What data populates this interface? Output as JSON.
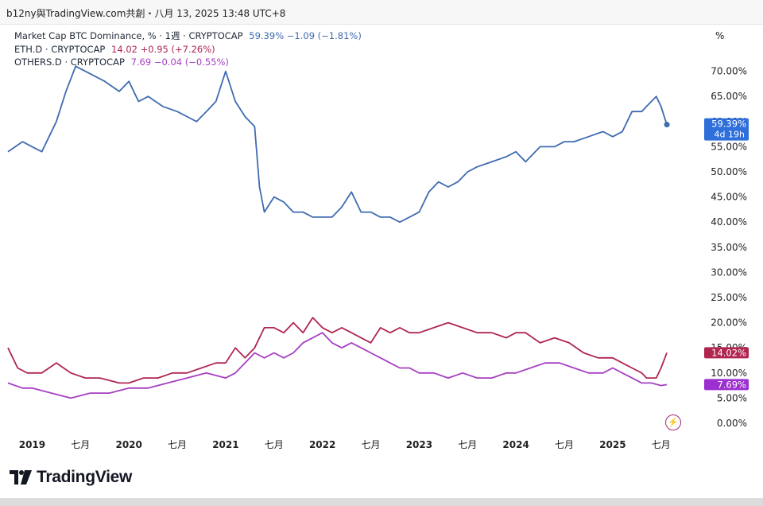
{
  "header": {
    "caption": "b12ny與TradingView.com共創・八月 13, 2025 13:48 UTC+8"
  },
  "legend": {
    "rows": [
      {
        "name": "Market Cap BTC Dominance, % · 1週 · CRYPTOCAP",
        "values": "59.39%  −1.09 (−1.81%)",
        "color": "#3f6bb0"
      },
      {
        "name": "ETH.D · CRYPTOCAP",
        "values": "14.02  +0.95 (+7.26%)",
        "color": "#b0264f"
      },
      {
        "name": "OTHERS.D · CRYPTOCAP",
        "values": "7.69  −0.04 (−0.55%)",
        "color": "#a63fc2"
      }
    ]
  },
  "axis_unit": "%",
  "price_tags": {
    "btc": "59.39%",
    "btc_countdown": "4d 19h",
    "eth": "14.02%",
    "others": "7.69%"
  },
  "branding": {
    "logo_text": "TradingView"
  },
  "chart_data": {
    "type": "line",
    "x_labels": [
      "2019",
      "七月",
      "2020",
      "七月",
      "2021",
      "七月",
      "2022",
      "七月",
      "2023",
      "七月",
      "2024",
      "七月",
      "2025",
      "七月"
    ],
    "x_label_dates": [
      2019.0,
      2019.5,
      2020.0,
      2020.5,
      2021.0,
      2021.5,
      2022.0,
      2022.5,
      2023.0,
      2023.5,
      2024.0,
      2024.5,
      2025.0,
      2025.5
    ],
    "y_ticks": [
      "70.00%",
      "65.00%",
      "60.00%",
      "55.00%",
      "50.00%",
      "45.00%",
      "40.00%",
      "35.00%",
      "30.00%",
      "25.00%",
      "20.00%",
      "15.00%",
      "10.00%",
      "5.00%",
      "0.00%"
    ],
    "y_tick_values": [
      70,
      65,
      60,
      55,
      50,
      45,
      40,
      35,
      30,
      25,
      20,
      15,
      10,
      5,
      0
    ],
    "ylim": [
      0,
      75
    ],
    "xlim": [
      2018.75,
      2025.65
    ],
    "grid": false,
    "legend_position": "top-left",
    "series": [
      {
        "name": "Market Cap BTC Dominance, %",
        "color": "#3f6bb0",
        "x": [
          2018.75,
          2018.9,
          2019.0,
          2019.1,
          2019.25,
          2019.35,
          2019.45,
          2019.55,
          2019.65,
          2019.75,
          2019.9,
          2020.0,
          2020.1,
          2020.2,
          2020.35,
          2020.5,
          2020.6,
          2020.7,
          2020.8,
          2020.9,
          2021.0,
          2021.1,
          2021.2,
          2021.3,
          2021.35,
          2021.4,
          2021.5,
          2021.6,
          2021.7,
          2021.8,
          2021.9,
          2022.0,
          2022.1,
          2022.2,
          2022.3,
          2022.4,
          2022.5,
          2022.6,
          2022.7,
          2022.8,
          2022.9,
          2023.0,
          2023.1,
          2023.2,
          2023.3,
          2023.4,
          2023.5,
          2023.6,
          2023.75,
          2023.9,
          2024.0,
          2024.1,
          2024.25,
          2024.4,
          2024.5,
          2024.6,
          2024.75,
          2024.9,
          2025.0,
          2025.1,
          2025.2,
          2025.3,
          2025.35,
          2025.4,
          2025.45,
          2025.5,
          2025.56
        ],
        "y": [
          54,
          56,
          55,
          54,
          60,
          66,
          71,
          70,
          69,
          68,
          66,
          68,
          64,
          65,
          63,
          62,
          61,
          60,
          62,
          64,
          70,
          64,
          61,
          59,
          47,
          42,
          45,
          44,
          42,
          42,
          41,
          41,
          41,
          43,
          46,
          42,
          42,
          41,
          41,
          40,
          41,
          42,
          46,
          48,
          47,
          48,
          50,
          51,
          52,
          53,
          54,
          52,
          55,
          55,
          56,
          56,
          57,
          58,
          57,
          58,
          62,
          62,
          63,
          64,
          65,
          63,
          59.39
        ]
      },
      {
        "name": "ETH.D",
        "color": "#b0264f",
        "x": [
          2018.75,
          2018.85,
          2018.95,
          2019.1,
          2019.25,
          2019.4,
          2019.55,
          2019.7,
          2019.9,
          2020.0,
          2020.15,
          2020.3,
          2020.45,
          2020.6,
          2020.75,
          2020.9,
          2021.0,
          2021.1,
          2021.2,
          2021.3,
          2021.4,
          2021.5,
          2021.6,
          2021.7,
          2021.8,
          2021.9,
          2022.0,
          2022.1,
          2022.2,
          2022.3,
          2022.4,
          2022.5,
          2022.6,
          2022.7,
          2022.8,
          2022.9,
          2023.0,
          2023.15,
          2023.3,
          2023.45,
          2023.6,
          2023.75,
          2023.9,
          2024.0,
          2024.1,
          2024.25,
          2024.4,
          2024.55,
          2024.7,
          2024.85,
          2025.0,
          2025.1,
          2025.2,
          2025.3,
          2025.35,
          2025.45,
          2025.5,
          2025.56
        ],
        "y": [
          15,
          11,
          10,
          10,
          12,
          10,
          9,
          9,
          8,
          8,
          9,
          9,
          10,
          10,
          11,
          12,
          12,
          15,
          13,
          15,
          19,
          19,
          18,
          20,
          18,
          21,
          19,
          18,
          19,
          18,
          17,
          16,
          19,
          18,
          19,
          18,
          18,
          19,
          20,
          19,
          18,
          18,
          17,
          18,
          18,
          16,
          17,
          16,
          14,
          13,
          13,
          12,
          11,
          10,
          9,
          9,
          11,
          14.02
        ]
      },
      {
        "name": "OTHERS.D",
        "color": "#a63fc2",
        "x": [
          2018.75,
          2018.9,
          2019.0,
          2019.2,
          2019.4,
          2019.6,
          2019.8,
          2020.0,
          2020.2,
          2020.4,
          2020.6,
          2020.8,
          2021.0,
          2021.1,
          2021.2,
          2021.3,
          2021.4,
          2021.5,
          2021.6,
          2021.7,
          2021.8,
          2021.9,
          2022.0,
          2022.1,
          2022.2,
          2022.3,
          2022.4,
          2022.5,
          2022.6,
          2022.7,
          2022.8,
          2022.9,
          2023.0,
          2023.15,
          2023.3,
          2023.45,
          2023.6,
          2023.75,
          2023.9,
          2024.0,
          2024.15,
          2024.3,
          2024.45,
          2024.6,
          2024.75,
          2024.9,
          2025.0,
          2025.1,
          2025.2,
          2025.3,
          2025.4,
          2025.5,
          2025.56
        ],
        "y": [
          8,
          7,
          7,
          6,
          5,
          6,
          6,
          7,
          7,
          8,
          9,
          10,
          9,
          10,
          12,
          14,
          13,
          14,
          13,
          14,
          16,
          17,
          18,
          16,
          15,
          16,
          15,
          14,
          13,
          12,
          11,
          11,
          10,
          10,
          9,
          10,
          9,
          9,
          10,
          10,
          11,
          12,
          12,
          11,
          10,
          10,
          11,
          10,
          9,
          8,
          8,
          7.5,
          7.69
        ]
      }
    ]
  }
}
